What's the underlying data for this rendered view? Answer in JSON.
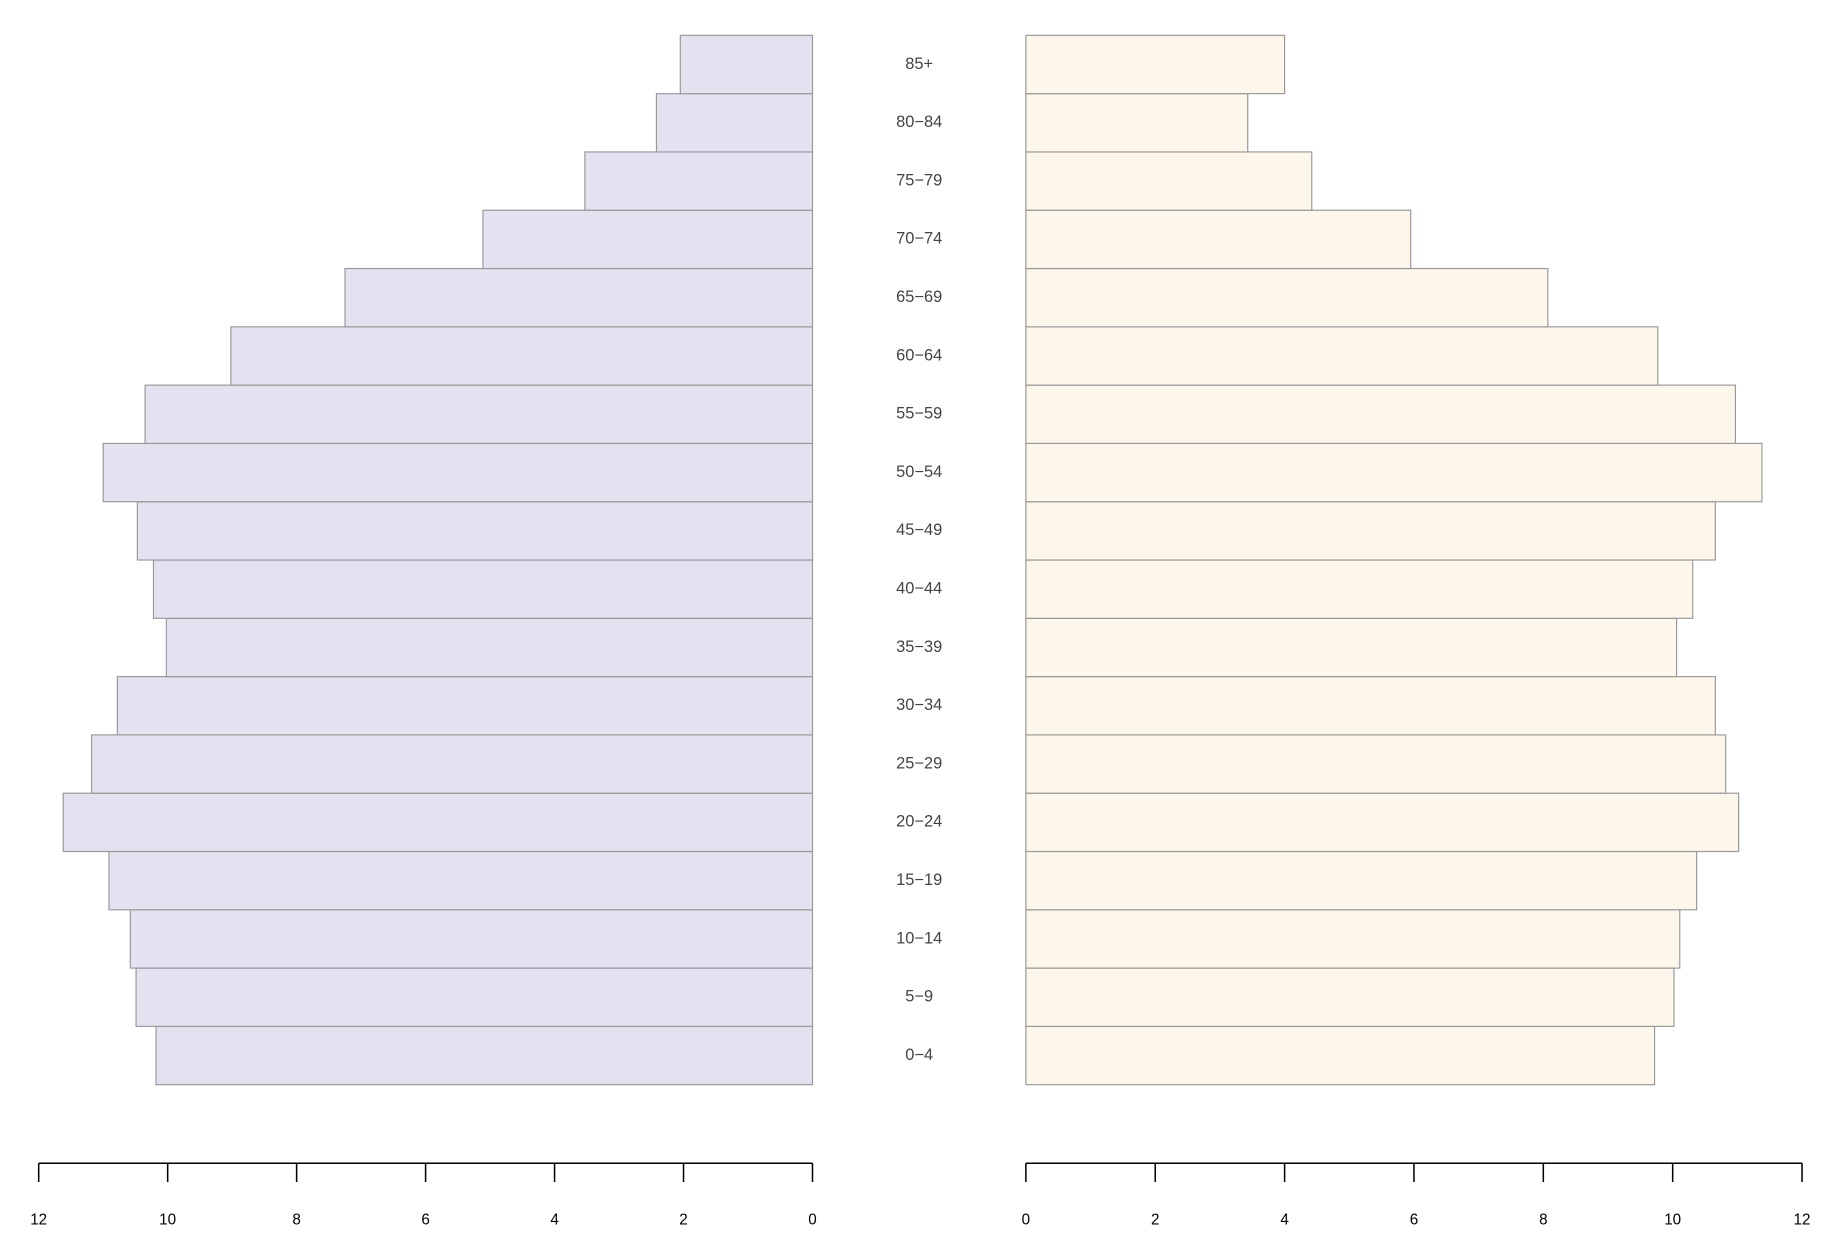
{
  "chart_data": {
    "type": "pyramid",
    "categories": [
      "0−4",
      "5−9",
      "10−14",
      "15−19",
      "20−24",
      "25−29",
      "30−34",
      "35−39",
      "40−44",
      "45−49",
      "50−54",
      "55−59",
      "60−64",
      "65−69",
      "70−74",
      "75−79",
      "80−84",
      "85+"
    ],
    "series": [
      {
        "color": "#e2e2f0",
        "values": [
          10.18,
          10.49,
          10.58,
          10.91,
          11.62,
          11.18,
          10.78,
          10.02,
          10.22,
          10.47,
          11.0,
          10.35,
          9.02,
          7.25,
          5.11,
          3.53,
          2.42,
          2.05
        ]
      },
      {
        "color": "#fdf6ea",
        "values": [
          9.72,
          10.02,
          10.11,
          10.37,
          11.02,
          10.82,
          10.66,
          10.06,
          10.31,
          10.66,
          11.38,
          10.97,
          9.77,
          8.07,
          5.95,
          4.42,
          3.43,
          4.0
        ]
      }
    ],
    "xlim": [
      0,
      12
    ],
    "xticks": [
      0,
      2,
      4,
      6,
      8,
      10,
      12
    ]
  }
}
